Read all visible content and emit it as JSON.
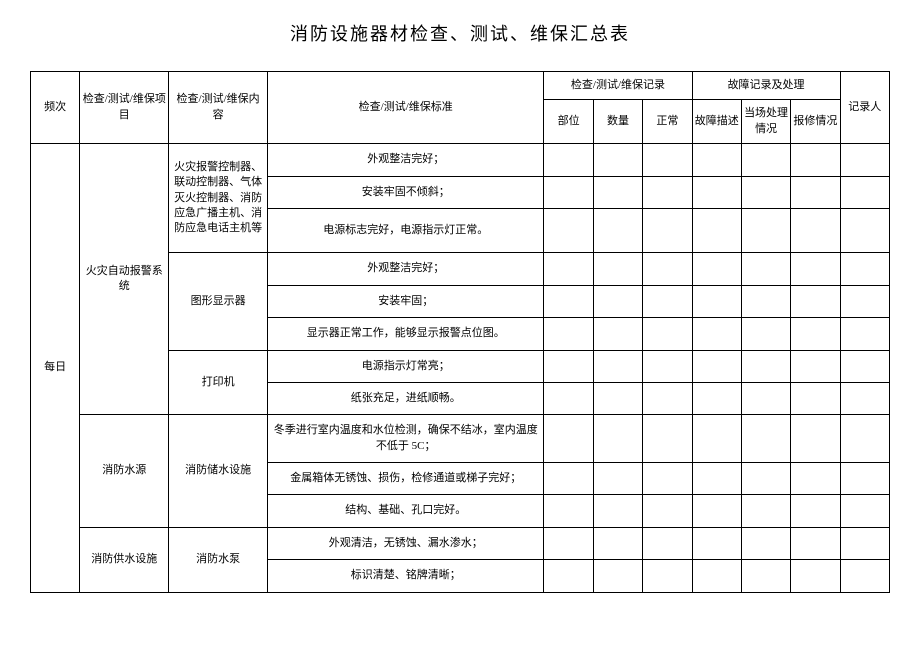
{
  "title": "消防设施器材检查、测试、维保汇总表",
  "headers": {
    "frequency": "频次",
    "project": "检查/测试/维保项目",
    "content": "检查/测试/维保内容",
    "standard": "检查/测试/维保标准",
    "record_group": "检查/测试/维保记录",
    "location": "部位",
    "quantity": "数量",
    "normal": "正常",
    "fault_group": "故障记录及处理",
    "fault_desc": "故障描述",
    "fault_handle": "当场处理情况",
    "repair": "报修情况",
    "recorder": "记录人"
  },
  "frequency_value": "每日",
  "projects": {
    "fire_alarm": "火灾自动报警系统",
    "fire_water": "消防水源",
    "fire_supply": "消防供水设施"
  },
  "contents": {
    "controllers": "火灾报警控制器、联动控制器、气体灭火控制器、消防应急广播主机、消防应急电话主机等",
    "display": "图形显示器",
    "printer": "打印机",
    "storage": "消防储水设施",
    "pump": "消防水泵"
  },
  "standards": {
    "s1": "外观整洁完好；",
    "s2": "安装牢固不倾斜；",
    "s3": "电源标志完好，电源指示灯正常。",
    "s4": "外观整洁完好；",
    "s5": "安装牢固；",
    "s6": "显示器正常工作，能够显示报警点位图。",
    "s7": "电源指示灯常亮；",
    "s8": "纸张充足，进纸顺畅。",
    "s9": "冬季进行室内温度和水位检测，确保不结冰，室内温度不低于 5C；",
    "s10": "金属箱体无锈蚀、损伤，检修通道或梯子完好；",
    "s11": "结构、基础、孔口完好。",
    "s12": "外观清洁，无锈蚀、漏水渗水；",
    "s13": "标识清楚、铭牌清晰；"
  }
}
